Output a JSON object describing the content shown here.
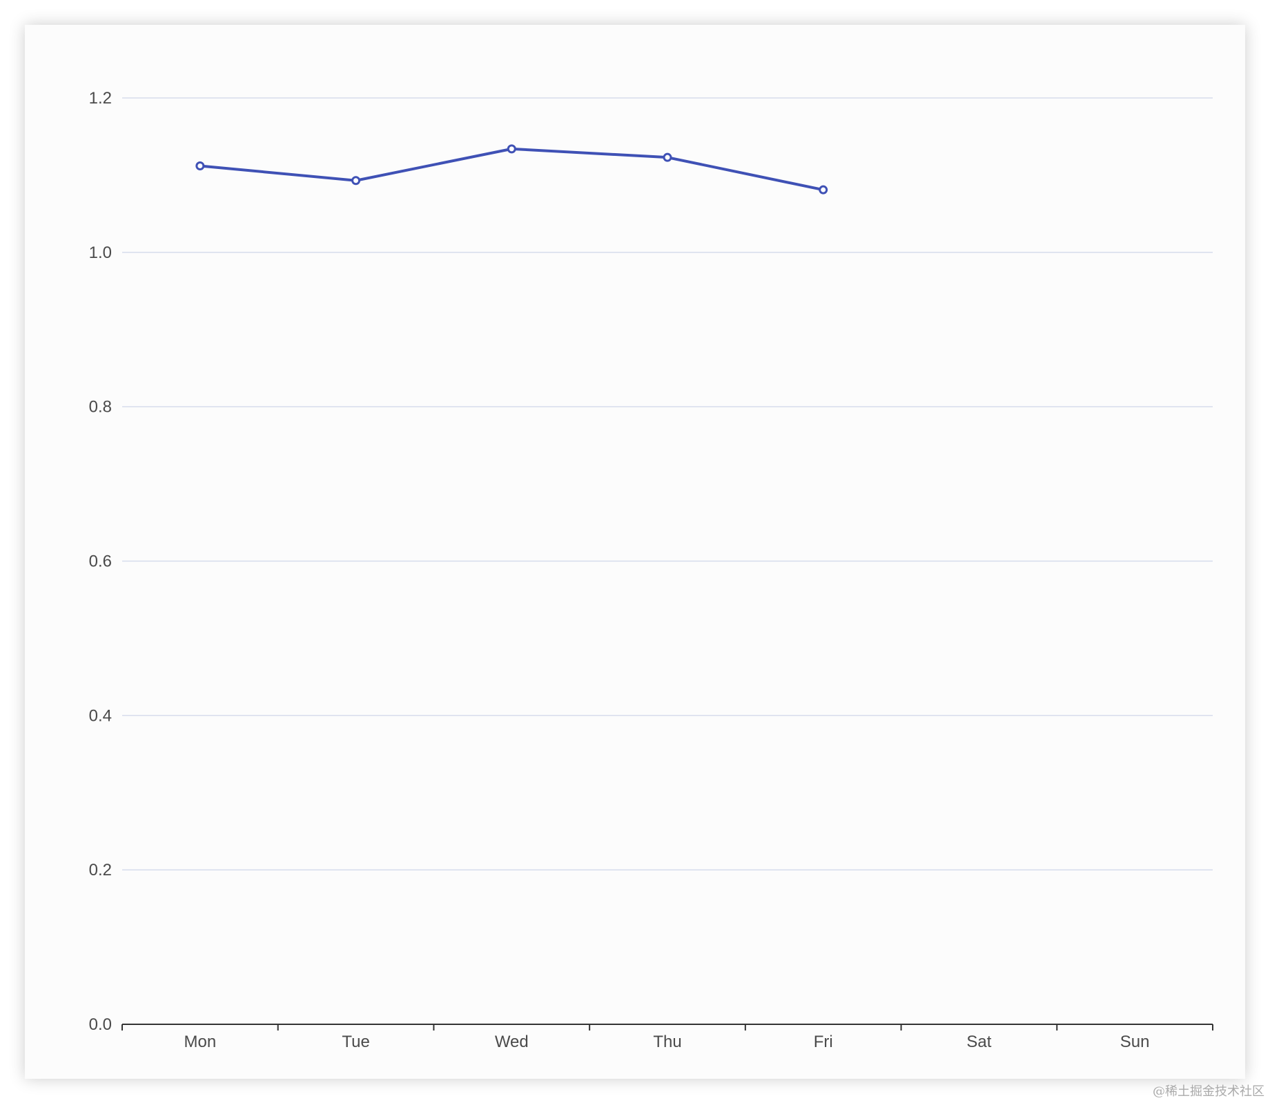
{
  "chart_data": {
    "type": "line",
    "categories": [
      "Mon",
      "Tue",
      "Wed",
      "Thu",
      "Fri",
      "Sat",
      "Sun"
    ],
    "series": [
      {
        "values": [
          1.112,
          1.093,
          1.134,
          1.123,
          1.081,
          null,
          null
        ]
      }
    ],
    "ylim": [
      0,
      1.2
    ],
    "yticks": [
      "0.0",
      "0.2",
      "0.4",
      "0.6",
      "0.8",
      "1.0",
      "1.2"
    ],
    "grid": true,
    "colors": {
      "line": "#3f51b5",
      "grid": "#d6dcec",
      "axis": "#333333",
      "label": "#4a4a4a",
      "card": "#fcfcfc"
    }
  },
  "watermark": "@稀土掘金技术社区"
}
